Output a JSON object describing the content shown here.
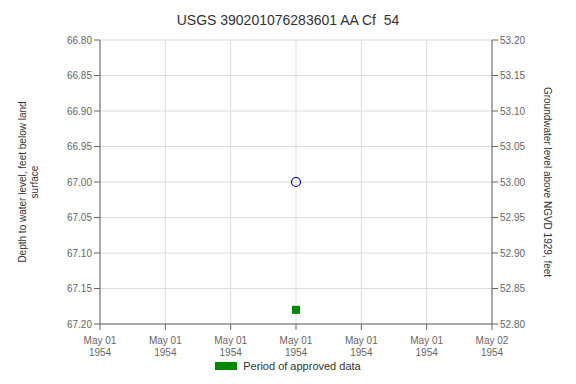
{
  "chart_data": {
    "type": "scatter",
    "title": "USGS 390201076283601 AA Cf  54",
    "categories": [
      "May 01\n1954",
      "May 01\n1954",
      "May 01\n1954",
      "May 01\n1954",
      "May 01\n1954",
      "May 01\n1954",
      "May 02\n1954"
    ],
    "series": [
      {
        "color": "#0000cc",
        "marker": "circle",
        "values": [
          null,
          null,
          null,
          67.0,
          null,
          null,
          null
        ]
      },
      {
        "name": "Period of approved data",
        "color": "#008800",
        "marker": "square",
        "values": [
          null,
          null,
          null,
          67.18,
          null,
          null,
          null
        ]
      }
    ],
    "ylabel": "Depth to water level, feet below land\n surface",
    "y2label": "Groundwater level above NGVD 1929, feet",
    "ylim": [
      67.2,
      66.8
    ],
    "yticks": [
      {
        "value": 66.8,
        "label": "66.80"
      },
      66.85,
      {
        "value": 66.9,
        "label": "66.90"
      },
      66.95,
      {
        "value": 67.0,
        "label": "67.00"
      },
      67.05,
      {
        "value": 67.1,
        "label": "67.10"
      },
      67.15,
      {
        "value": 67.2,
        "label": "67.20"
      }
    ],
    "y2lim": [
      52.8,
      53.2
    ],
    "y2ticks": [
      {
        "value": 53.2,
        "label": "53.20"
      },
      53.15,
      {
        "value": 53.1,
        "label": "53.10"
      },
      53.05,
      {
        "value": 53.0,
        "label": "53.00"
      },
      52.95,
      {
        "value": 52.9,
        "label": "52.90"
      },
      52.85,
      {
        "value": 52.8,
        "label": "52.80"
      }
    ],
    "grid": true,
    "legend": "bottom"
  }
}
